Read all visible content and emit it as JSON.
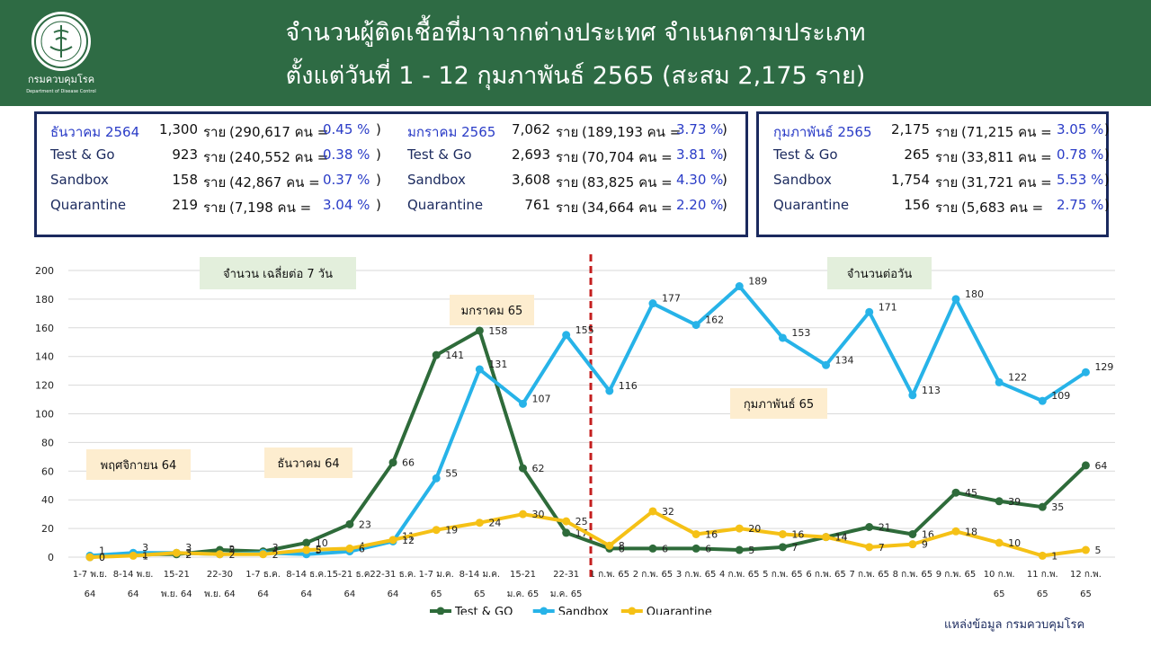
{
  "header": {
    "title_line1": "จำนวนผู้ติดเชื้อที่มาจากต่างประเทศ จำแนกตามประเภท",
    "title_line2": "ตั้งแต่วันที่  1 - 12  กุมภาพันธ์  2565 (สะสม 2,175 ราย)",
    "logo_text": "กรมควบคุมโรค",
    "logo_subtext": "Department of Disease Control"
  },
  "summary": {
    "dec": {
      "rows": [
        {
          "label": "ธันวาคม 2564",
          "count": "1,300",
          "unit": "ราย",
          "persons": "(290,617 คน =",
          "pct": "0.45 %",
          "close": ")"
        },
        {
          "label": "Test & Go",
          "count": "923",
          "unit": "ราย",
          "persons": "(240,552 คน =",
          "pct": "0.38 %",
          "close": ")"
        },
        {
          "label": "Sandbox",
          "count": "158",
          "unit": "ราย",
          "persons": "(42,867 คน   =",
          "pct": "0.37 %",
          "close": ")"
        },
        {
          "label": "Quarantine",
          "count": "219",
          "unit": "ราย",
          "persons": "(7,198 คน     =",
          "pct": "3.04 %",
          "close": ")"
        }
      ]
    },
    "jan": {
      "rows": [
        {
          "label": "มกราคม 2565",
          "count": "7,062",
          "unit": "ราย",
          "persons": "(189,193 คน =",
          "pct": "3.73 %",
          "close": ")"
        },
        {
          "label": "Test & Go",
          "count": "2,693",
          "unit": "ราย",
          "persons": "(70,704 คน =",
          "pct": "3.81 %",
          "close": ")"
        },
        {
          "label": "Sandbox",
          "count": "3,608",
          "unit": "ราย",
          "persons": "(83,825 คน =",
          "pct": "4.30 %",
          "close": ")"
        },
        {
          "label": "Quarantine",
          "count": "761",
          "unit": "ราย",
          "persons": "(34,664 คน =",
          "pct": "2.20 %",
          "close": ")"
        }
      ]
    },
    "feb": {
      "rows": [
        {
          "label": "กุมภาพันธ์ 2565",
          "count": "2,175",
          "unit": "ราย",
          "persons": "(71,215 คน  =",
          "pct": "3.05 %",
          "close": ")"
        },
        {
          "label": "Test & Go",
          "count": "265",
          "unit": "ราย",
          "persons": "(33,811 คน  =",
          "pct": "0.78 %",
          "close": ")"
        },
        {
          "label": "Sandbox",
          "count": "1,754",
          "unit": "ราย",
          "persons": "(31,721 คน  =",
          "pct": "5.53 %",
          "close": ")"
        },
        {
          "label": "Quarantine",
          "count": "156",
          "unit": "ราย",
          "persons": "(5,683 คน    =",
          "pct": "2.75 %",
          "close": ")"
        }
      ]
    }
  },
  "chart_data": {
    "type": "line",
    "categories": [
      [
        "1-7 พ.ย.",
        "64"
      ],
      [
        "8-14 พ.ย.",
        "64"
      ],
      [
        "15-21",
        "พ.ย. 64"
      ],
      [
        "22-30",
        "พ.ย. 64"
      ],
      [
        "1-7 ธ.ค.",
        "64"
      ],
      [
        "8-14 ธ.ค.",
        "64"
      ],
      [
        "15-21 ธ.ค.",
        "64"
      ],
      [
        "22-31 ธ.ค.",
        "64"
      ],
      [
        "1-7 ม.ค.",
        "65"
      ],
      [
        "8-14 ม.ค.",
        "65"
      ],
      [
        "15-21",
        "ม.ค. 65"
      ],
      [
        "22-31",
        "ม.ค. 65"
      ],
      [
        "1 ก.พ. 65",
        ""
      ],
      [
        "2 ก.พ. 65",
        ""
      ],
      [
        "3 ก.พ. 65",
        ""
      ],
      [
        "4 ก.พ. 65",
        ""
      ],
      [
        "5 ก.พ. 65",
        ""
      ],
      [
        "6 ก.พ. 65",
        ""
      ],
      [
        "7 ก.พ. 65",
        ""
      ],
      [
        "8 ก.พ. 65",
        ""
      ],
      [
        "9 ก.พ. 65",
        ""
      ],
      [
        "10 ก.พ.",
        "65"
      ],
      [
        "11 ก.พ.",
        "65"
      ],
      [
        "12 ก.พ.",
        "65"
      ]
    ],
    "series": [
      {
        "name": "Test & GO",
        "color": "#2e6b3a",
        "values": [
          0,
          2,
          2,
          5,
          4,
          10,
          23,
          66,
          141,
          158,
          62,
          17,
          6,
          6,
          6,
          5,
          7,
          14,
          21,
          16,
          45,
          39,
          35,
          64
        ]
      },
      {
        "name": "Sandbox",
        "color": "#27b3e8",
        "values": [
          1,
          3,
          3,
          2,
          3,
          2,
          4,
          11,
          55,
          131,
          107,
          155,
          116,
          177,
          162,
          189,
          153,
          134,
          171,
          113,
          180,
          122,
          109,
          129
        ]
      },
      {
        "name": "Quarantine",
        "color": "#f5c116",
        "values": [
          0,
          1,
          3,
          2,
          2,
          5,
          6,
          12,
          19,
          24,
          30,
          25,
          8,
          32,
          16,
          20,
          16,
          14,
          7,
          9,
          18,
          10,
          1,
          5
        ]
      }
    ],
    "point_labels": [
      [
        "0",
        "2",
        "2",
        "5",
        "4",
        "10",
        "23",
        "66",
        "141",
        "158",
        "62",
        "17",
        "6",
        "6",
        "6",
        "5",
        "7",
        "14",
        "21",
        "16",
        "45",
        "39",
        "35",
        "64"
      ],
      [
        "1",
        "3",
        "3",
        "2",
        "3",
        "2",
        "4",
        "11",
        "55",
        "131",
        "107",
        "155",
        "116",
        "177",
        "162",
        "189",
        "153",
        "134",
        "171",
        "113",
        "180",
        "122",
        "109",
        "129"
      ],
      [
        "0",
        "1",
        "3",
        "2",
        "2",
        "5",
        "6",
        "12",
        "19",
        "24",
        "30",
        "25",
        "8",
        "32",
        "16",
        "20",
        "16",
        "14",
        "7",
        "9",
        "18",
        "10",
        "1",
        "5"
      ]
    ],
    "y_ticks": [
      "0",
      "20",
      "40",
      "60",
      "80",
      "100",
      "120",
      "140",
      "160",
      "180",
      "200"
    ],
    "ylim": [
      0,
      200
    ],
    "grid": true,
    "legend_position": "bottom",
    "annotations": {
      "left_title": "จำนวน เฉลี่ยต่อ 7 วัน",
      "right_title": "จำนวนต่อวัน",
      "nov": "พฤศจิกายน 64",
      "dec": "ธันวาคม 64",
      "jan": "มกราคม 65",
      "feb": "กุมภาพันธ์ 65"
    },
    "divider_color": "#c41e1e"
  },
  "source": "แหล่งข้อมูล กรมควบคุมโรค"
}
